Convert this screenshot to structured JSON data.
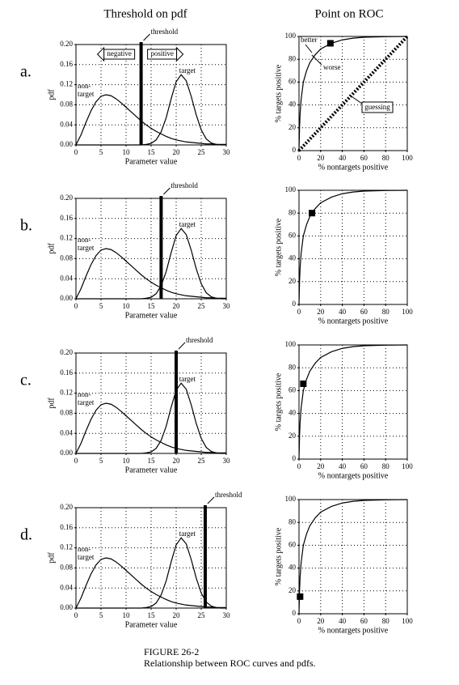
{
  "column_titles": [
    "Threshold on pdf",
    "Point on ROC"
  ],
  "row_labels": [
    "a.",
    "b.",
    "c.",
    "d."
  ],
  "caption": [
    "FIGURE 26-2",
    "Relationship between ROC curves and pdfs."
  ],
  "chart_data": [
    {
      "type": "pdf",
      "xlabel": "Parameter value",
      "ylabel": "pdf",
      "xlim": [
        0,
        30
      ],
      "ylim": [
        0,
        0.2
      ],
      "xticks": [
        0,
        5,
        10,
        15,
        20,
        25,
        30
      ],
      "yticks": [
        {
          "value": 0,
          "label": "0.00"
        },
        0.04,
        0.08,
        0.12,
        0.16,
        {
          "value": 0.2,
          "label": "0.20"
        }
      ],
      "grid": true,
      "x": [
        0,
        1,
        2,
        3,
        4,
        5,
        6,
        7,
        8,
        9,
        10,
        11,
        12,
        13,
        14,
        15,
        16,
        17,
        18,
        19,
        20,
        21,
        22,
        23,
        24,
        25,
        26,
        27,
        28,
        29,
        30
      ],
      "series": [
        {
          "color": "#000000",
          "values": [
            0,
            0.02,
            0.045,
            0.068,
            0.086,
            0.097,
            0.1,
            0.098,
            0.092,
            0.084,
            0.075,
            0.066,
            0.057,
            0.048,
            0.04,
            0.033,
            0.027,
            0.022,
            0.017,
            0.013,
            0.01,
            0.008,
            0.006,
            0.005,
            0.004,
            0.003,
            0.002,
            0.002,
            0.001,
            0.001,
            0.001
          ]
        },
        {
          "color": "#000000",
          "values": [
            0,
            0,
            0,
            0,
            0,
            0,
            0,
            0,
            0,
            0,
            0,
            0,
            0,
            0,
            0.001,
            0.003,
            0.01,
            0.026,
            0.054,
            0.092,
            0.126,
            0.14,
            0.128,
            0.097,
            0.06,
            0.03,
            0.012,
            0.004,
            0.001,
            0,
            0
          ]
        }
      ],
      "threshold": 13,
      "annotations": {
        "nontarget_label": [
          "non-",
          "target"
        ],
        "target_label": "target",
        "threshold_label": "threshold",
        "negative_label": "negative",
        "positive_label": "positive"
      }
    },
    {
      "type": "roc",
      "xlabel": "% nontargets positive",
      "ylabel": "% targets positive",
      "xlim": [
        0,
        100
      ],
      "ylim": [
        0,
        100
      ],
      "xticks": [
        0,
        20,
        40,
        60,
        80,
        100
      ],
      "yticks": [
        0,
        20,
        40,
        60,
        80,
        100
      ],
      "grid": true,
      "series": [
        {
          "style": "line",
          "color": "#000000",
          "x": [
            0,
            0.5,
            1,
            2,
            4,
            7,
            10,
            15,
            20,
            30,
            40,
            50,
            60,
            80,
            100
          ],
          "values": [
            0,
            20,
            32,
            45,
            60,
            70,
            77,
            84,
            89,
            94,
            97,
            98.5,
            99.3,
            99.8,
            100
          ]
        },
        {
          "style": "point",
          "color": "#000000",
          "x": [
            29
          ],
          "values": [
            94
          ]
        },
        {
          "style": "dotted",
          "color": "#000000",
          "x": [
            0,
            100
          ],
          "values": [
            0,
            100
          ]
        }
      ],
      "annotations": {
        "better_label": "better",
        "worse_label": "worse",
        "guessing_label": "guessing"
      }
    },
    {
      "type": "pdf",
      "xlabel": "Parameter value",
      "ylabel": "pdf",
      "xlim": [
        0,
        30
      ],
      "ylim": [
        0,
        0.2
      ],
      "xticks": [
        0,
        5,
        10,
        15,
        20,
        25,
        30
      ],
      "yticks": [
        {
          "value": 0,
          "label": "0.00"
        },
        0.04,
        0.08,
        0.12,
        0.16,
        {
          "value": 0.2,
          "label": "0.20"
        }
      ],
      "grid": true,
      "x": [
        0,
        1,
        2,
        3,
        4,
        5,
        6,
        7,
        8,
        9,
        10,
        11,
        12,
        13,
        14,
        15,
        16,
        17,
        18,
        19,
        20,
        21,
        22,
        23,
        24,
        25,
        26,
        27,
        28,
        29,
        30
      ],
      "series": [
        {
          "color": "#000000",
          "values": [
            0,
            0.02,
            0.045,
            0.068,
            0.086,
            0.097,
            0.1,
            0.098,
            0.092,
            0.084,
            0.075,
            0.066,
            0.057,
            0.048,
            0.04,
            0.033,
            0.027,
            0.022,
            0.017,
            0.013,
            0.01,
            0.008,
            0.006,
            0.005,
            0.004,
            0.003,
            0.002,
            0.002,
            0.001,
            0.001,
            0.001
          ]
        },
        {
          "color": "#000000",
          "values": [
            0,
            0,
            0,
            0,
            0,
            0,
            0,
            0,
            0,
            0,
            0,
            0,
            0,
            0,
            0.001,
            0.003,
            0.01,
            0.026,
            0.054,
            0.092,
            0.126,
            0.14,
            0.128,
            0.097,
            0.06,
            0.03,
            0.012,
            0.004,
            0.001,
            0,
            0
          ]
        }
      ],
      "threshold": 17,
      "annotations": {
        "nontarget_label": [
          "non-",
          "target"
        ],
        "target_label": "target",
        "threshold_label": "threshold"
      }
    },
    {
      "type": "roc",
      "xlabel": "% nontargets positive",
      "ylabel": "% targets positive",
      "xlim": [
        0,
        100
      ],
      "ylim": [
        0,
        100
      ],
      "xticks": [
        0,
        20,
        40,
        60,
        80,
        100
      ],
      "yticks": [
        0,
        20,
        40,
        60,
        80,
        100
      ],
      "grid": true,
      "series": [
        {
          "style": "line",
          "color": "#000000",
          "x": [
            0,
            0.5,
            1,
            2,
            4,
            7,
            10,
            15,
            20,
            30,
            40,
            50,
            60,
            80,
            100
          ],
          "values": [
            0,
            20,
            32,
            45,
            60,
            70,
            77,
            84,
            89,
            94,
            97,
            98.5,
            99.3,
            99.8,
            100
          ]
        },
        {
          "style": "point",
          "color": "#000000",
          "x": [
            12
          ],
          "values": [
            80
          ]
        }
      ]
    },
    {
      "type": "pdf",
      "xlabel": "Parameter value",
      "ylabel": "pdf",
      "xlim": [
        0,
        30
      ],
      "ylim": [
        0,
        0.2
      ],
      "xticks": [
        0,
        5,
        10,
        15,
        20,
        25,
        30
      ],
      "yticks": [
        {
          "value": 0,
          "label": "0.00"
        },
        0.04,
        0.08,
        0.12,
        0.16,
        {
          "value": 0.2,
          "label": "0.20"
        }
      ],
      "grid": true,
      "x": [
        0,
        1,
        2,
        3,
        4,
        5,
        6,
        7,
        8,
        9,
        10,
        11,
        12,
        13,
        14,
        15,
        16,
        17,
        18,
        19,
        20,
        21,
        22,
        23,
        24,
        25,
        26,
        27,
        28,
        29,
        30
      ],
      "series": [
        {
          "color": "#000000",
          "values": [
            0,
            0.02,
            0.045,
            0.068,
            0.086,
            0.097,
            0.1,
            0.098,
            0.092,
            0.084,
            0.075,
            0.066,
            0.057,
            0.048,
            0.04,
            0.033,
            0.027,
            0.022,
            0.017,
            0.013,
            0.01,
            0.008,
            0.006,
            0.005,
            0.004,
            0.003,
            0.002,
            0.002,
            0.001,
            0.001,
            0.001
          ]
        },
        {
          "color": "#000000",
          "values": [
            0,
            0,
            0,
            0,
            0,
            0,
            0,
            0,
            0,
            0,
            0,
            0,
            0,
            0,
            0.001,
            0.003,
            0.01,
            0.026,
            0.054,
            0.092,
            0.126,
            0.14,
            0.128,
            0.097,
            0.06,
            0.03,
            0.012,
            0.004,
            0.001,
            0,
            0
          ]
        }
      ],
      "threshold": 20,
      "annotations": {
        "nontarget_label": [
          "non-",
          "target"
        ],
        "target_label": "target",
        "threshold_label": "threshold"
      }
    },
    {
      "type": "roc",
      "xlabel": "% nontargets positive",
      "ylabel": "% targets positive",
      "xlim": [
        0,
        100
      ],
      "ylim": [
        0,
        100
      ],
      "xticks": [
        0,
        20,
        40,
        60,
        80,
        100
      ],
      "yticks": [
        0,
        20,
        40,
        60,
        80,
        100
      ],
      "grid": true,
      "series": [
        {
          "style": "line",
          "color": "#000000",
          "x": [
            0,
            0.5,
            1,
            2,
            4,
            7,
            10,
            15,
            20,
            30,
            40,
            50,
            60,
            80,
            100
          ],
          "values": [
            0,
            20,
            32,
            45,
            60,
            70,
            77,
            84,
            89,
            94,
            97,
            98.5,
            99.3,
            99.8,
            100
          ]
        },
        {
          "style": "point",
          "color": "#000000",
          "x": [
            4
          ],
          "values": [
            66
          ]
        }
      ]
    },
    {
      "type": "pdf",
      "xlabel": "Parameter value",
      "ylabel": "pdf",
      "xlim": [
        0,
        30
      ],
      "ylim": [
        0,
        0.2
      ],
      "xticks": [
        0,
        5,
        10,
        15,
        20,
        25,
        30
      ],
      "yticks": [
        {
          "value": 0,
          "label": "0.00"
        },
        0.04,
        0.08,
        0.12,
        0.16,
        {
          "value": 0.2,
          "label": "0.20"
        }
      ],
      "grid": true,
      "x": [
        0,
        1,
        2,
        3,
        4,
        5,
        6,
        7,
        8,
        9,
        10,
        11,
        12,
        13,
        14,
        15,
        16,
        17,
        18,
        19,
        20,
        21,
        22,
        23,
        24,
        25,
        26,
        27,
        28,
        29,
        30
      ],
      "series": [
        {
          "color": "#000000",
          "values": [
            0,
            0.02,
            0.045,
            0.068,
            0.086,
            0.097,
            0.1,
            0.098,
            0.092,
            0.084,
            0.075,
            0.066,
            0.057,
            0.048,
            0.04,
            0.033,
            0.027,
            0.022,
            0.017,
            0.013,
            0.01,
            0.008,
            0.006,
            0.005,
            0.004,
            0.003,
            0.002,
            0.002,
            0.001,
            0.001,
            0.001
          ]
        },
        {
          "color": "#000000",
          "values": [
            0,
            0,
            0,
            0,
            0,
            0,
            0,
            0,
            0,
            0,
            0,
            0,
            0,
            0,
            0.001,
            0.003,
            0.01,
            0.026,
            0.054,
            0.092,
            0.126,
            0.14,
            0.128,
            0.097,
            0.06,
            0.03,
            0.012,
            0.004,
            0.001,
            0,
            0
          ]
        }
      ],
      "threshold": 25.8,
      "annotations": {
        "nontarget_label": [
          "non-",
          "target"
        ],
        "target_label": "target",
        "threshold_label": "threshold"
      }
    },
    {
      "type": "roc",
      "xlabel": "% nontargets positive",
      "ylabel": "% targets positive",
      "xlim": [
        0,
        100
      ],
      "ylim": [
        0,
        100
      ],
      "xticks": [
        0,
        20,
        40,
        60,
        80,
        100
      ],
      "yticks": [
        0,
        20,
        40,
        60,
        80,
        100
      ],
      "grid": true,
      "series": [
        {
          "style": "line",
          "color": "#000000",
          "x": [
            0,
            0.5,
            1,
            2,
            4,
            7,
            10,
            15,
            20,
            30,
            40,
            50,
            60,
            80,
            100
          ],
          "values": [
            0,
            20,
            32,
            45,
            60,
            70,
            77,
            84,
            89,
            94,
            97,
            98.5,
            99.3,
            99.8,
            100
          ]
        },
        {
          "style": "point",
          "color": "#000000",
          "x": [
            1
          ],
          "values": [
            15
          ]
        }
      ]
    }
  ]
}
